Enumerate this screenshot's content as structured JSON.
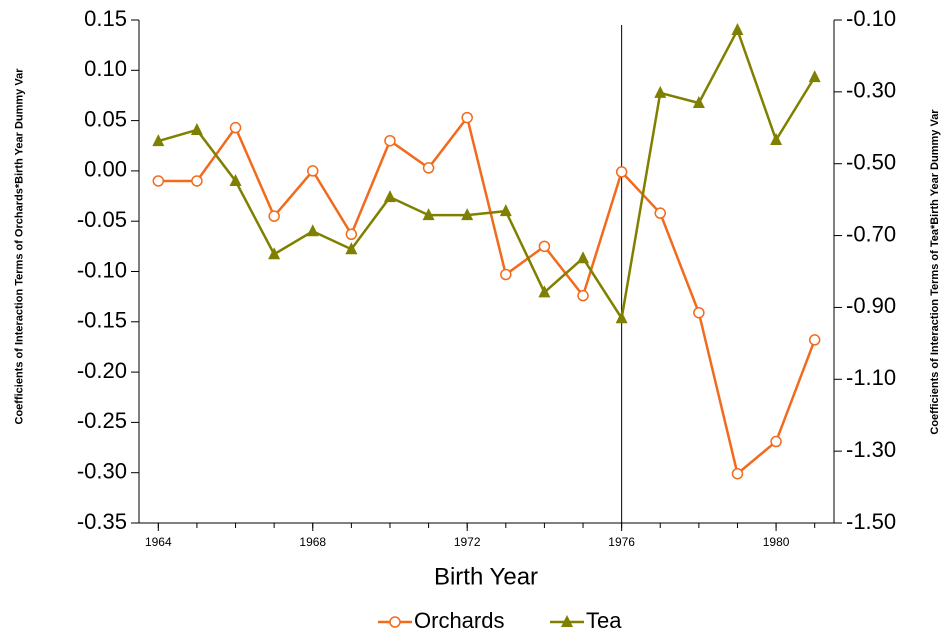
{
  "chart_data": {
    "type": "line",
    "x_label": "Birth Year",
    "y_label": "Coefficients of Interaction Terms of Orchards*Birth Year Dummy Var",
    "y2_label": "Coefficients of Interaction Terms of Tea*Birth Year Dummy Var",
    "x": [
      1964,
      1965,
      1966,
      1967,
      1968,
      1969,
      1970,
      1971,
      1972,
      1973,
      1974,
      1975,
      1976,
      1977,
      1978,
      1979,
      1980,
      1981
    ],
    "series": [
      {
        "name": "Orchards",
        "color": "#f26b1d",
        "marker": "circle",
        "axis": "y",
        "values": [
          -0.01,
          -0.01,
          0.043,
          -0.045,
          0.0,
          -0.063,
          0.03,
          0.003,
          0.053,
          -0.103,
          -0.075,
          -0.124,
          -0.001,
          -0.042,
          -0.141,
          -0.301,
          -0.269,
          -0.168
        ]
      },
      {
        "name": "Tea",
        "color": "#808000",
        "marker": "triangle",
        "axis": "y2",
        "values": [
          -0.437,
          -0.406,
          -0.548,
          -0.752,
          -0.688,
          -0.738,
          -0.593,
          -0.643,
          -0.643,
          -0.632,
          -0.858,
          -0.763,
          -0.93,
          -0.303,
          -0.331,
          -0.128,
          -0.434,
          -0.259
        ]
      }
    ],
    "xlim": [
      1963.5,
      1981.5
    ],
    "xticks": [
      1964,
      1968,
      1972,
      1976,
      1980
    ],
    "ylim": [
      -0.35,
      0.15
    ],
    "yticks": [
      {
        "value": 0.15,
        "label": "0.15"
      },
      {
        "value": 0.1,
        "label": "0.10"
      },
      {
        "value": 0.05,
        "label": "0.05"
      },
      {
        "value": 0,
        "label": "0.00"
      },
      {
        "value": -0.05,
        "label": "-0.05"
      },
      {
        "value": -0.1,
        "label": "-0.10"
      },
      {
        "value": -0.15,
        "label": "-0.15"
      },
      {
        "value": -0.2,
        "label": "-0.20"
      },
      {
        "value": -0.25,
        "label": "-0.25"
      },
      {
        "value": -0.3,
        "label": "-0.30"
      },
      {
        "value": -0.35,
        "label": "-0.35"
      }
    ],
    "y2lim": [
      -1.5,
      -0.1
    ],
    "y2ticks": [
      {
        "value": -0.1,
        "label": "-0.10"
      },
      {
        "value": -0.3,
        "label": "-0.30"
      },
      {
        "value": -0.5,
        "label": "-0.50"
      },
      {
        "value": -0.7,
        "label": "-0.70"
      },
      {
        "value": -0.9,
        "label": "-0.90"
      },
      {
        "value": -1.1,
        "label": "-1.10"
      },
      {
        "value": -1.3,
        "label": "-1.30"
      },
      {
        "value": -1.5,
        "label": "-1.50"
      }
    ],
    "vline": 1976,
    "grid": false
  }
}
